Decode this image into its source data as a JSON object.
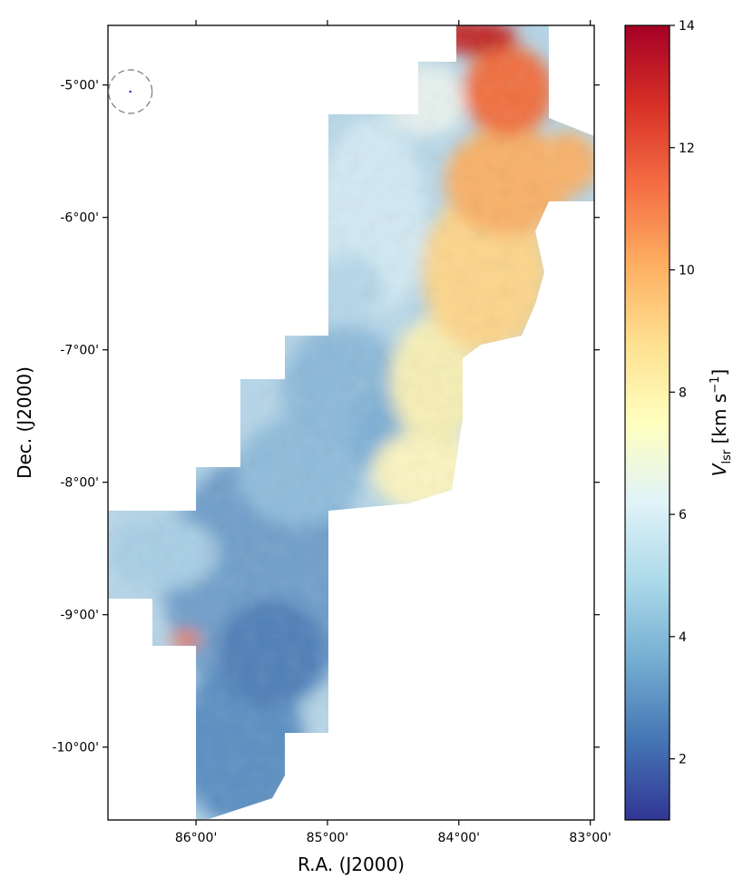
{
  "chart_data": {
    "type": "heatmap",
    "title": "",
    "xlabel": "R.A. (J2000)",
    "ylabel": "Dec. (J2000)",
    "x_ticks": [
      {
        "value": 86.0,
        "label": "86°00'"
      },
      {
        "value": 85.0,
        "label": "85°00'"
      },
      {
        "value": 84.0,
        "label": "84°00'"
      },
      {
        "value": 83.0,
        "label": "83°00'"
      }
    ],
    "y_ticks": [
      {
        "value": -5.0,
        "label": "-5°00'"
      },
      {
        "value": -6.0,
        "label": "-6°00'"
      },
      {
        "value": -7.0,
        "label": "-7°00'"
      },
      {
        "value": -8.0,
        "label": "-8°00'"
      },
      {
        "value": -9.0,
        "label": "-9°00'"
      },
      {
        "value": -10.0,
        "label": "-10°00'"
      }
    ],
    "xlim": [
      86.67,
      82.97
    ],
    "ylim": [
      -10.55,
      -4.55
    ],
    "x_inverted": true,
    "colorbar": {
      "label_main": "V",
      "label_sub": "lsr",
      "label_units": " [km s",
      "label_exp": "−1",
      "label_close": "]",
      "range": [
        1,
        14
      ],
      "ticks": [
        {
          "value": 2,
          "label": "2"
        },
        {
          "value": 4,
          "label": "4"
        },
        {
          "value": 6,
          "label": "6"
        },
        {
          "value": 8,
          "label": "8"
        },
        {
          "value": 10,
          "label": "10"
        },
        {
          "value": 12,
          "label": "12"
        },
        {
          "value": 14,
          "label": "14"
        }
      ],
      "colormap": "RdYlBu_r",
      "stops": [
        "#313695",
        "#4575b4",
        "#74add1",
        "#abd9e9",
        "#e0f3f8",
        "#ffffbf",
        "#fee090",
        "#fdae61",
        "#f46d43",
        "#d73027",
        "#a50026"
      ]
    },
    "beam": {
      "ra": 86.5,
      "dec": -5.05
    }
  }
}
